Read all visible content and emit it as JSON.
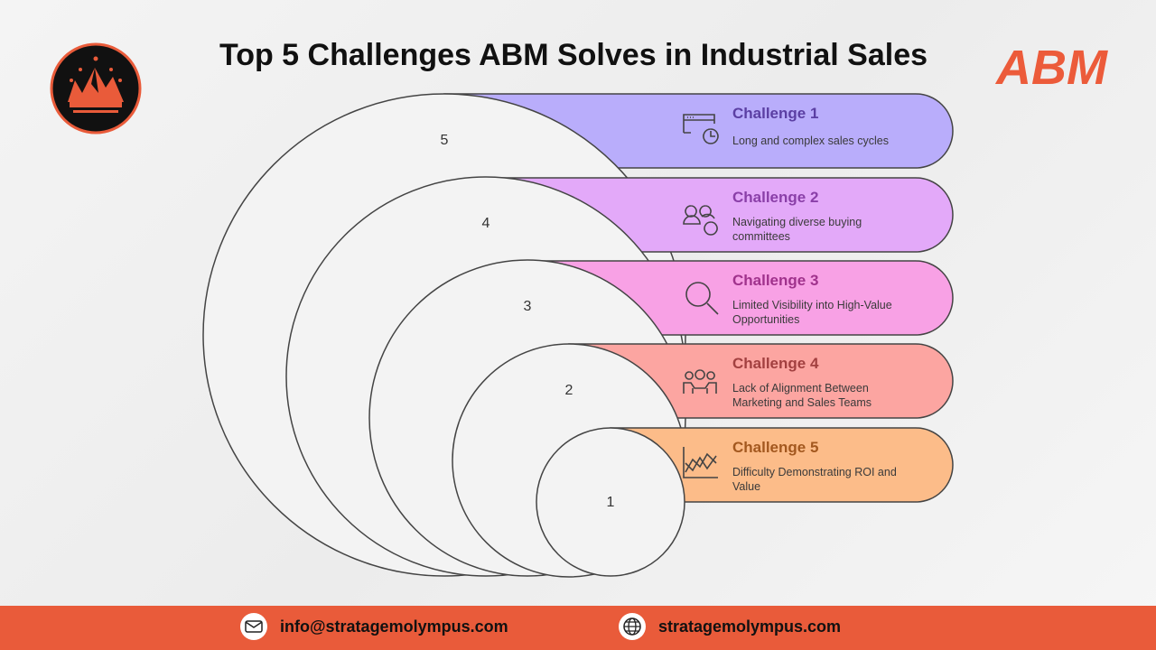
{
  "title": "Top 5 Challenges ABM Solves in Industrial Sales",
  "brand": "ABM",
  "challenges": [
    {
      "rank": "5",
      "title": "Challenge 1",
      "desc": [
        "Long and complex sales cycles"
      ],
      "icon": "browser-clock-icon",
      "fill": "#b9adfb",
      "text": "#5b3fa3"
    },
    {
      "rank": "4",
      "title": "Challenge 2",
      "desc": [
        "Navigating diverse buying",
        "committees"
      ],
      "icon": "users-question-icon",
      "fill": "#e3a9f9",
      "text": "#8a3fa8"
    },
    {
      "rank": "3",
      "title": "Challenge 3",
      "desc": [
        "Limited Visibility into High-Value",
        "Opportunities"
      ],
      "icon": "magnifier-icon",
      "fill": "#f8a1e5",
      "text": "#a0328c"
    },
    {
      "rank": "2",
      "title": "Challenge 4",
      "desc": [
        "Lack of Alignment Between",
        "Marketing and Sales Teams"
      ],
      "icon": "team-gear-icon",
      "fill": "#fca5a1",
      "text": "#a24040"
    },
    {
      "rank": "1",
      "title": "Challenge 5",
      "desc": [
        "Difficulty Demonstrating ROI and",
        "Value"
      ],
      "icon": "line-chart-icon",
      "fill": "#fcbc89",
      "text": "#a3581f"
    }
  ],
  "footer": {
    "email": "info@stratagemolympus.com",
    "website": "stratagemolympus.com"
  },
  "colors": {
    "accent": "#e95b3a"
  }
}
